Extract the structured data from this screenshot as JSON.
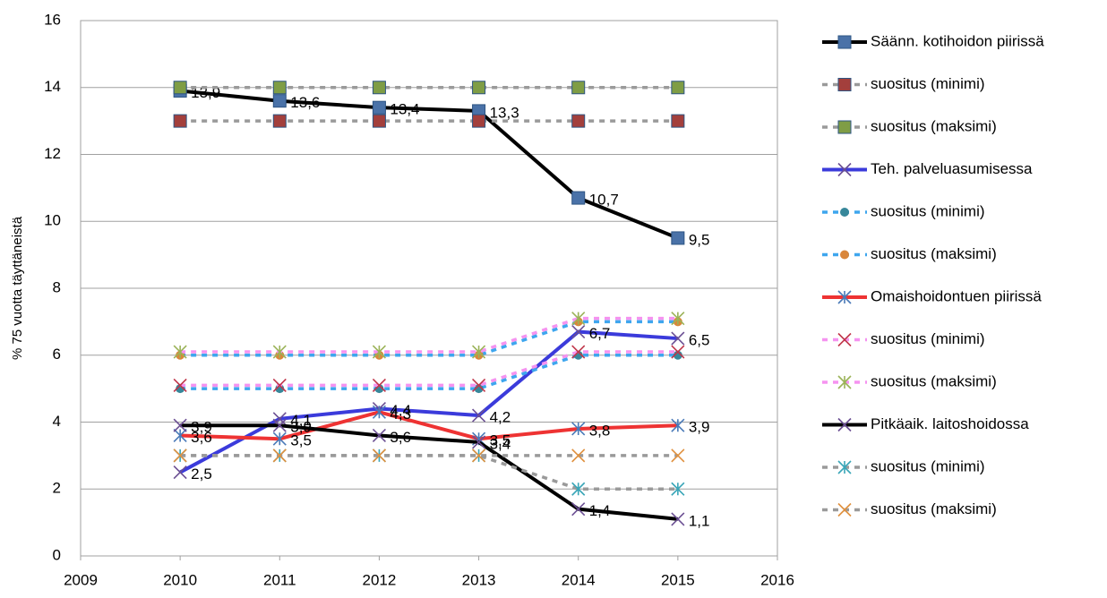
{
  "chart_data": {
    "type": "line",
    "y_label": "% 75 vuotta täyttäneistä",
    "x": [
      2010,
      2011,
      2012,
      2013,
      2014,
      2015
    ],
    "xlim": [
      2009,
      2016
    ],
    "xticks": [
      2009,
      2010,
      2011,
      2012,
      2013,
      2014,
      2015,
      2016
    ],
    "ylim": [
      0,
      16
    ],
    "yticks": [
      0,
      2,
      4,
      6,
      8,
      10,
      12,
      14,
      16
    ],
    "grid": true,
    "legend": "right",
    "series": [
      {
        "name": "Säänn. kotihoidon piirissä",
        "color": "#000000",
        "marker": "square",
        "marker_color": "#4a72a8",
        "dash": false,
        "values": [
          13.9,
          13.6,
          13.4,
          13.3,
          10.7,
          9.5
        ],
        "value_labels": [
          "13,9",
          "13,6",
          "13,4",
          "13,3",
          "10,7",
          "9,5"
        ]
      },
      {
        "name": "suositus (minimi)",
        "color": "#9a9a9a",
        "marker": "square",
        "marker_color": "#a33f3c",
        "dash": true,
        "values": [
          13,
          13,
          13,
          13,
          13,
          13
        ]
      },
      {
        "name": "suositus (maksimi)",
        "color": "#9a9a9a",
        "marker": "square",
        "marker_color": "#7f9d45",
        "dash": true,
        "values": [
          14,
          14,
          14,
          14,
          14,
          14
        ]
      },
      {
        "name": "Teh. palveluasumisessa",
        "color": "#3b3bdb",
        "marker": "x",
        "marker_color": "#6b4f93",
        "dash": false,
        "values": [
          2.5,
          4.1,
          4.4,
          4.2,
          6.7,
          6.5
        ],
        "value_labels": [
          "2,5",
          "4,1",
          "4,4",
          "4,2",
          "6,7",
          "6,5"
        ]
      },
      {
        "name": "suositus (minimi)",
        "color": "#3ea6ee",
        "marker": "circle",
        "marker_color": "#37879a",
        "dash": true,
        "values": [
          5,
          5,
          5,
          5,
          6,
          6
        ]
      },
      {
        "name": "suositus (maksimi)",
        "color": "#3ea6ee",
        "marker": "circle",
        "marker_color": "#d9863a",
        "dash": true,
        "values": [
          6,
          6,
          6,
          6,
          7,
          7
        ]
      },
      {
        "name": "Omaishoidontuen piirissä",
        "color": "#ee3333",
        "marker": "asterisk",
        "marker_color": "#4a7ab8",
        "dash": false,
        "values": [
          3.6,
          3.5,
          4.3,
          3.5,
          3.8,
          3.9
        ],
        "value_labels": [
          "3,6",
          "3,5",
          "4,3",
          "3,5",
          "3,8",
          "3,9"
        ]
      },
      {
        "name": "suositus (minimi)",
        "color": "#f593f0",
        "marker": "x",
        "marker_color": "#c0364a",
        "dash": true,
        "values": [
          5.1,
          5.1,
          5.1,
          5.1,
          6.1,
          6.1
        ]
      },
      {
        "name": "suositus (maksimi)",
        "color": "#f593f0",
        "marker": "asterisk",
        "marker_color": "#9bb358",
        "dash": true,
        "values": [
          6.1,
          6.1,
          6.1,
          6.1,
          7.1,
          7.1
        ]
      },
      {
        "name": "Pitkäaik. laitoshoidossa",
        "color": "#000000",
        "marker": "x",
        "marker_color": "#6b4f93",
        "dash": false,
        "values": [
          3.9,
          3.9,
          3.6,
          3.4,
          1.4,
          1.1
        ],
        "value_labels": [
          "3,9",
          "3,9",
          "3,6",
          "3,4",
          "1,4",
          "1,1"
        ]
      },
      {
        "name": "suositus (minimi)",
        "color": "#9a9a9a",
        "marker": "asterisk",
        "marker_color": "#3aa6b8",
        "dash": true,
        "values": [
          3,
          3,
          3,
          3,
          2,
          2
        ]
      },
      {
        "name": "suositus (maksimi)",
        "color": "#9a9a9a",
        "marker": "x",
        "marker_color": "#e0913f",
        "dash": true,
        "values": [
          3,
          3,
          3,
          3,
          3,
          3
        ]
      }
    ]
  }
}
